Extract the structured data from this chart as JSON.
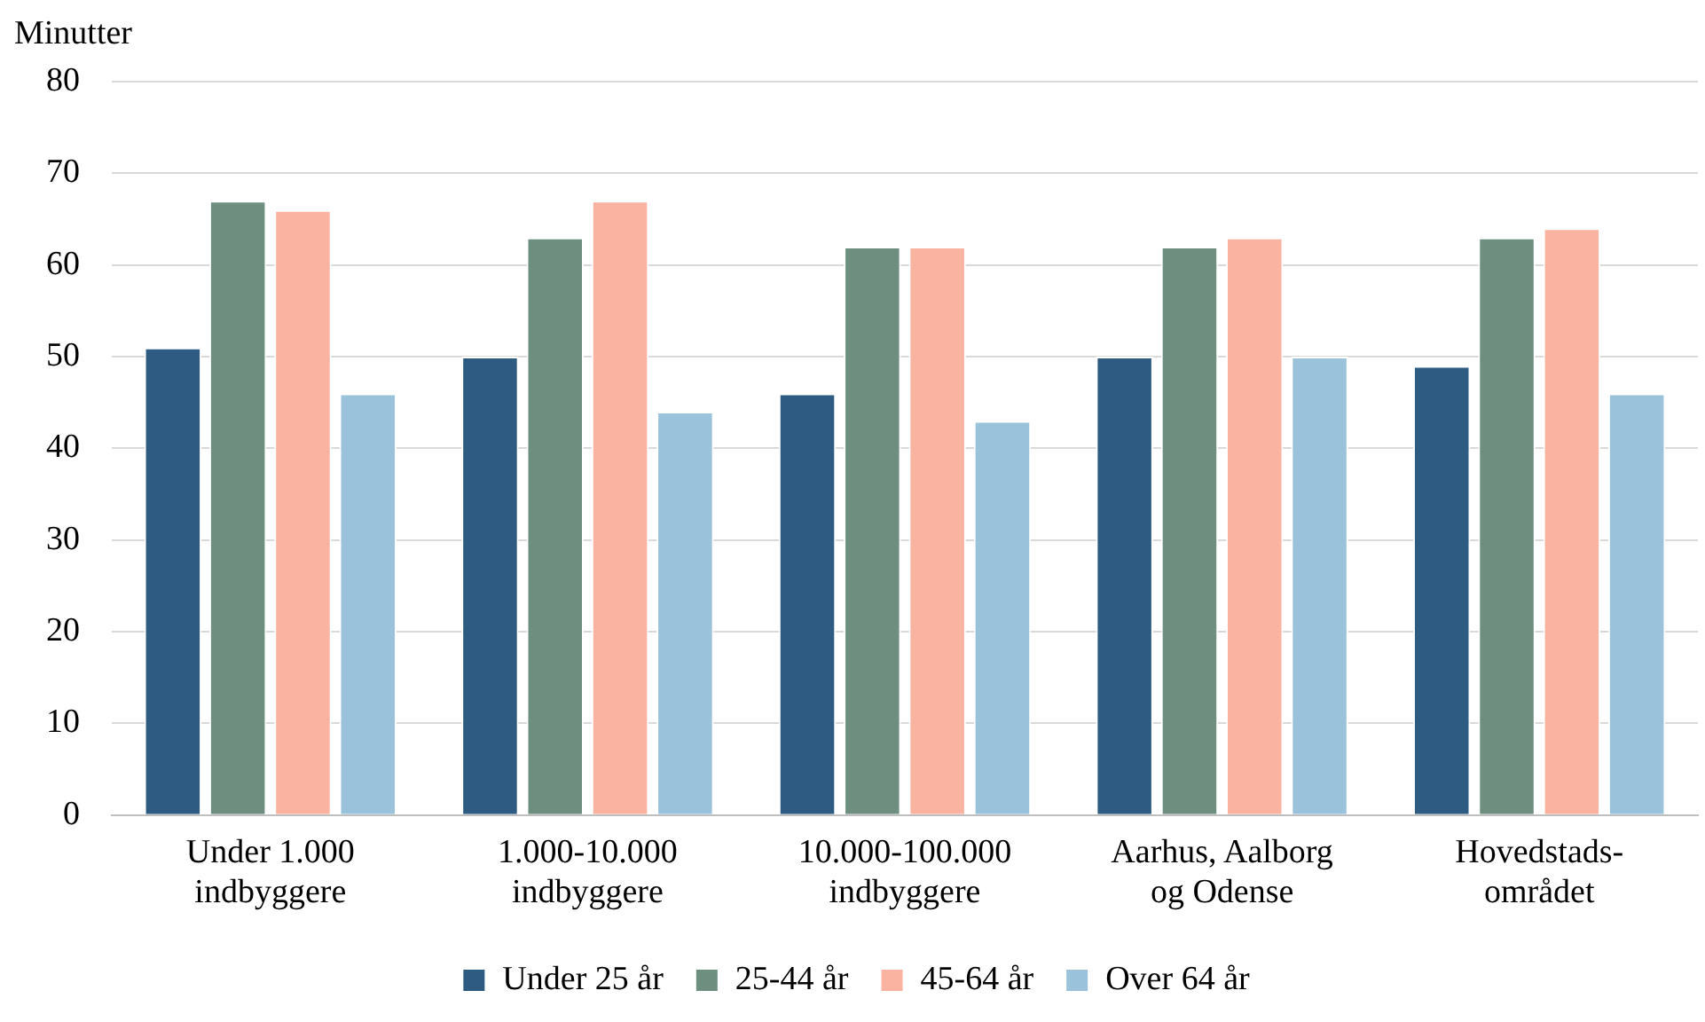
{
  "chart_data": {
    "type": "bar",
    "ylabel": "Minutter",
    "categories": [
      "Under 1.000\nindbyggere",
      "1.000-10.000\nindbyggere",
      "10.000-100.000\nindbyggere",
      "Aarhus, Aalborg\nog Odense",
      "Hovedstads-\nområdet"
    ],
    "series": [
      {
        "name": "Under 25 år",
        "color": "#2e5b82",
        "values": [
          51,
          50,
          46,
          50,
          49
        ]
      },
      {
        "name": "25-44 år",
        "color": "#6e8f80",
        "values": [
          67,
          63,
          62,
          62,
          63
        ]
      },
      {
        "name": "45-64 år",
        "color": "#f9b3a0",
        "values": [
          66,
          67,
          62,
          63,
          64
        ]
      },
      {
        "name": "Over 64 år",
        "color": "#9bc2db",
        "values": [
          46,
          44,
          43,
          50,
          46
        ]
      }
    ],
    "ylim": [
      0,
      80
    ],
    "yticks": [
      0,
      10,
      20,
      30,
      40,
      50,
      60,
      70,
      80
    ],
    "grid": "y",
    "legend": "bottom"
  }
}
